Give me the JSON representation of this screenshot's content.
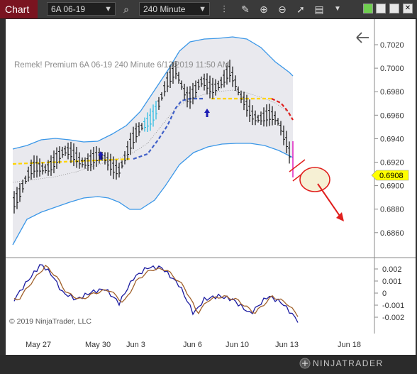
{
  "toolbar": {
    "tab_label": "Chart",
    "instrument": "6A 06-19",
    "interval": "240 Minute"
  },
  "chart": {
    "overlay_label": "Remek!  Premium  6A 06-19  240 Minute  6/13/2019 11:50 AM",
    "copyright": "© 2019 NinjaTrader, LLC",
    "last_price": "0.6908",
    "price_axis": [
      "0.7020",
      "0.7000",
      "0.6980",
      "0.6960",
      "0.6940",
      "0.6920",
      "0.6900",
      "0.6880",
      "0.6860"
    ],
    "osc_axis": [
      "0.002",
      "0.001",
      "0",
      "-0.001",
      "-0.002"
    ],
    "x_labels": [
      "May 27",
      "May 30",
      "Jun 3",
      "Jun 6",
      "Jun 10",
      "Jun 13",
      "Jun 18"
    ]
  },
  "footer": {
    "brand": "NINJATRADER"
  },
  "colors": {
    "tab_bg": "#7a1420",
    "band_blue": "#3a97e8",
    "yellow_line": "#ffd400",
    "red_line": "#e0201e",
    "ma_blue": "#4060c8",
    "osc_blue": "#1a1aa0",
    "osc_brown": "#a0602a",
    "price_badge": "#ffff00"
  }
}
